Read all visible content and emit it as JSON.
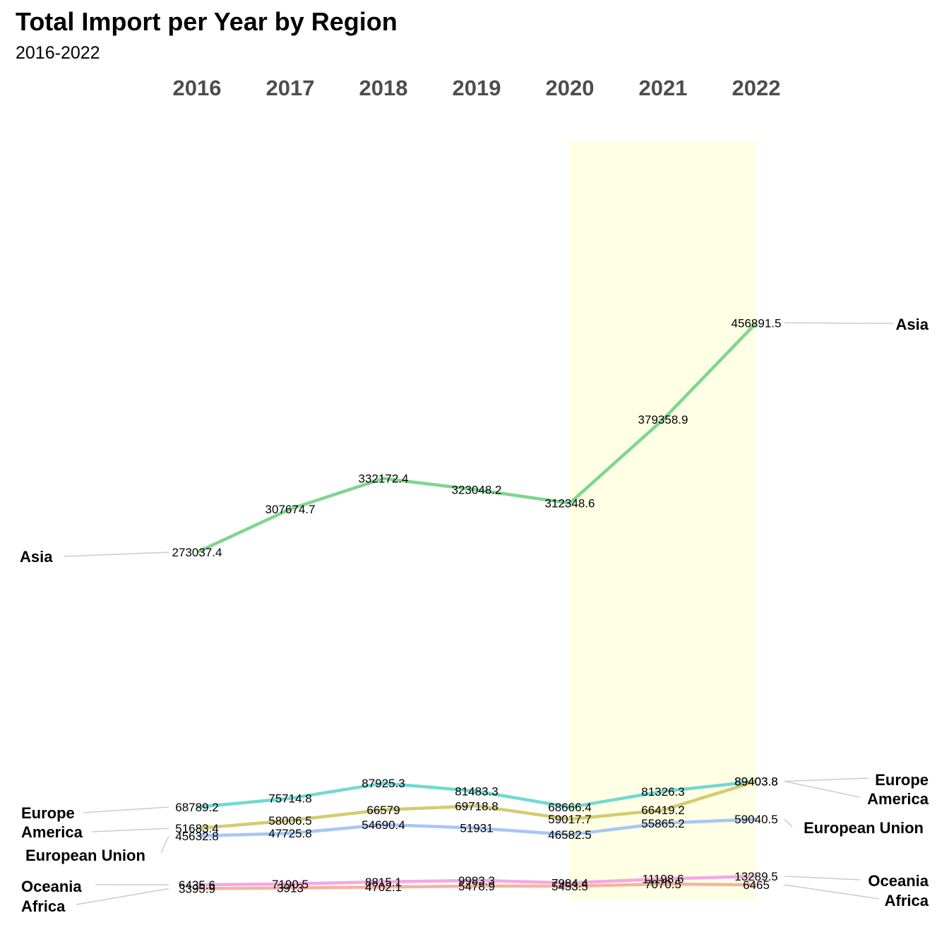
{
  "title": "Total Import per Year by Region",
  "subtitle": "2016-2022",
  "chart_data": {
    "type": "line",
    "x": [
      "2016",
      "2017",
      "2018",
      "2019",
      "2020",
      "2021",
      "2022"
    ],
    "highlight_range": [
      "2020",
      "2022"
    ],
    "highlight_color": "#FFFFE5",
    "series": [
      {
        "name": "Asia",
        "color": "#7FD58F",
        "values": [
          273037.4,
          307674.7,
          332172.4,
          323048.2,
          312348.6,
          379358.9,
          456891.5
        ]
      },
      {
        "name": "Europe",
        "color": "#70D9D3",
        "values": [
          68789.2,
          75714.8,
          87925.3,
          81483.3,
          68666.4,
          81326.3,
          89403.8
        ]
      },
      {
        "name": "America",
        "color": "#D3CC70",
        "values": [
          51683.4,
          58006.5,
          66579,
          69718.8,
          59017.7,
          66419.2,
          89403.8
        ]
      },
      {
        "name": "European Union",
        "color": "#A8C6F5",
        "values": [
          45632.8,
          47725.8,
          54690.4,
          51931,
          46582.5,
          55865.2,
          59040.5
        ]
      },
      {
        "name": "Oceania",
        "color": "#F4A8E3",
        "values": [
          6435.6,
          7190.5,
          8815.1,
          9983.3,
          7984.4,
          11198.6,
          13289.5
        ]
      },
      {
        "name": "Africa",
        "color": "#F8B2A0",
        "values": [
          3395.9,
          3913,
          4702.1,
          5478.9,
          5453.5,
          7070.5,
          6465
        ]
      }
    ]
  }
}
